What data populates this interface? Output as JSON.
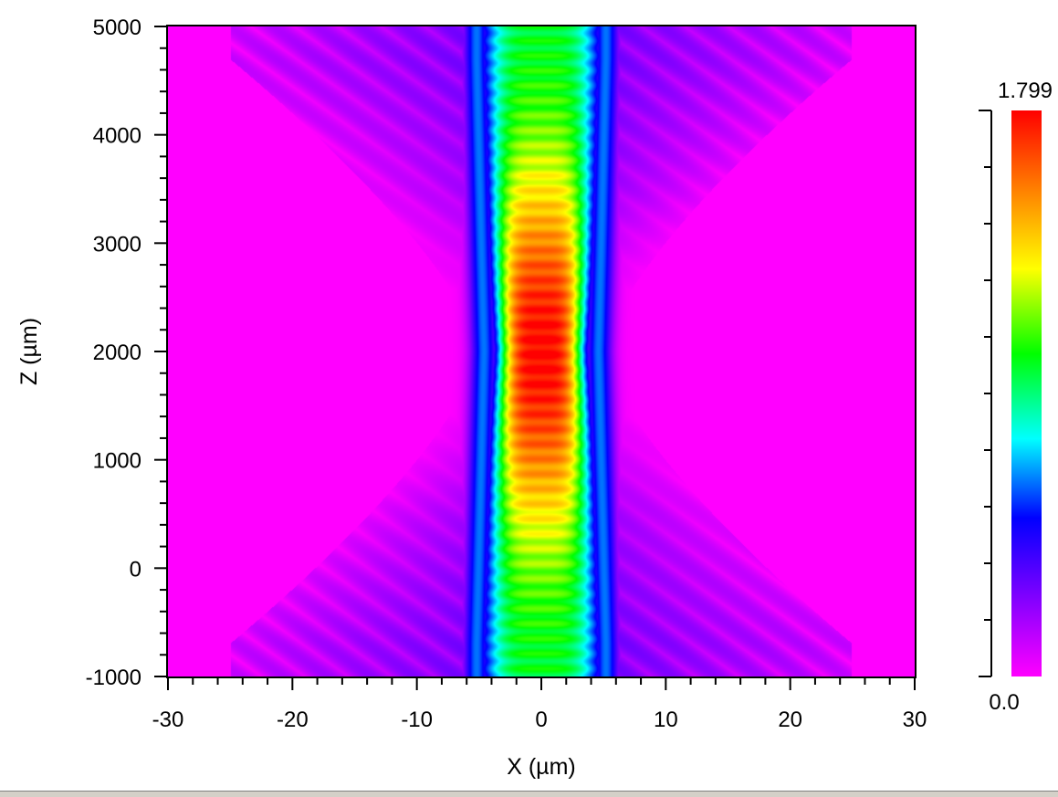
{
  "chart_data": {
    "type": "heatmap",
    "title": "",
    "xlabel": "X (µm)",
    "ylabel": "Z (µm)",
    "xlim": [
      -30,
      30
    ],
    "ylim": [
      -1000,
      5000
    ],
    "x_ticks": [
      -30,
      -20,
      -10,
      0,
      10,
      20,
      30
    ],
    "x_tick_labels": [
      "-30",
      "-20",
      "-10",
      "0",
      "10",
      "20",
      "30"
    ],
    "y_ticks": [
      -1000,
      0,
      1000,
      2000,
      3000,
      4000,
      5000
    ],
    "y_tick_labels": [
      "-1000",
      "0",
      "1000",
      "2000",
      "3000",
      "4000",
      "5000"
    ],
    "colorbar": {
      "min": 0.0,
      "max": 1.799,
      "min_label": "0.0",
      "max_label": "1.799",
      "colormap": [
        "#ff00ff",
        "#8000ff",
        "#0000ff",
        "#00ffff",
        "#00ff00",
        "#ffff00",
        "#ff8000",
        "#ff0000"
      ]
    },
    "field": {
      "description": "Focused beam intensity: narrow waist near Z=2000 µm, X=0, peak ~1.79",
      "focus_z": 2000,
      "core_half_width_um": 5,
      "peak_value": 1.79,
      "side_lobe_extent_um": 25
    }
  },
  "window": {
    "status_bar": ""
  }
}
